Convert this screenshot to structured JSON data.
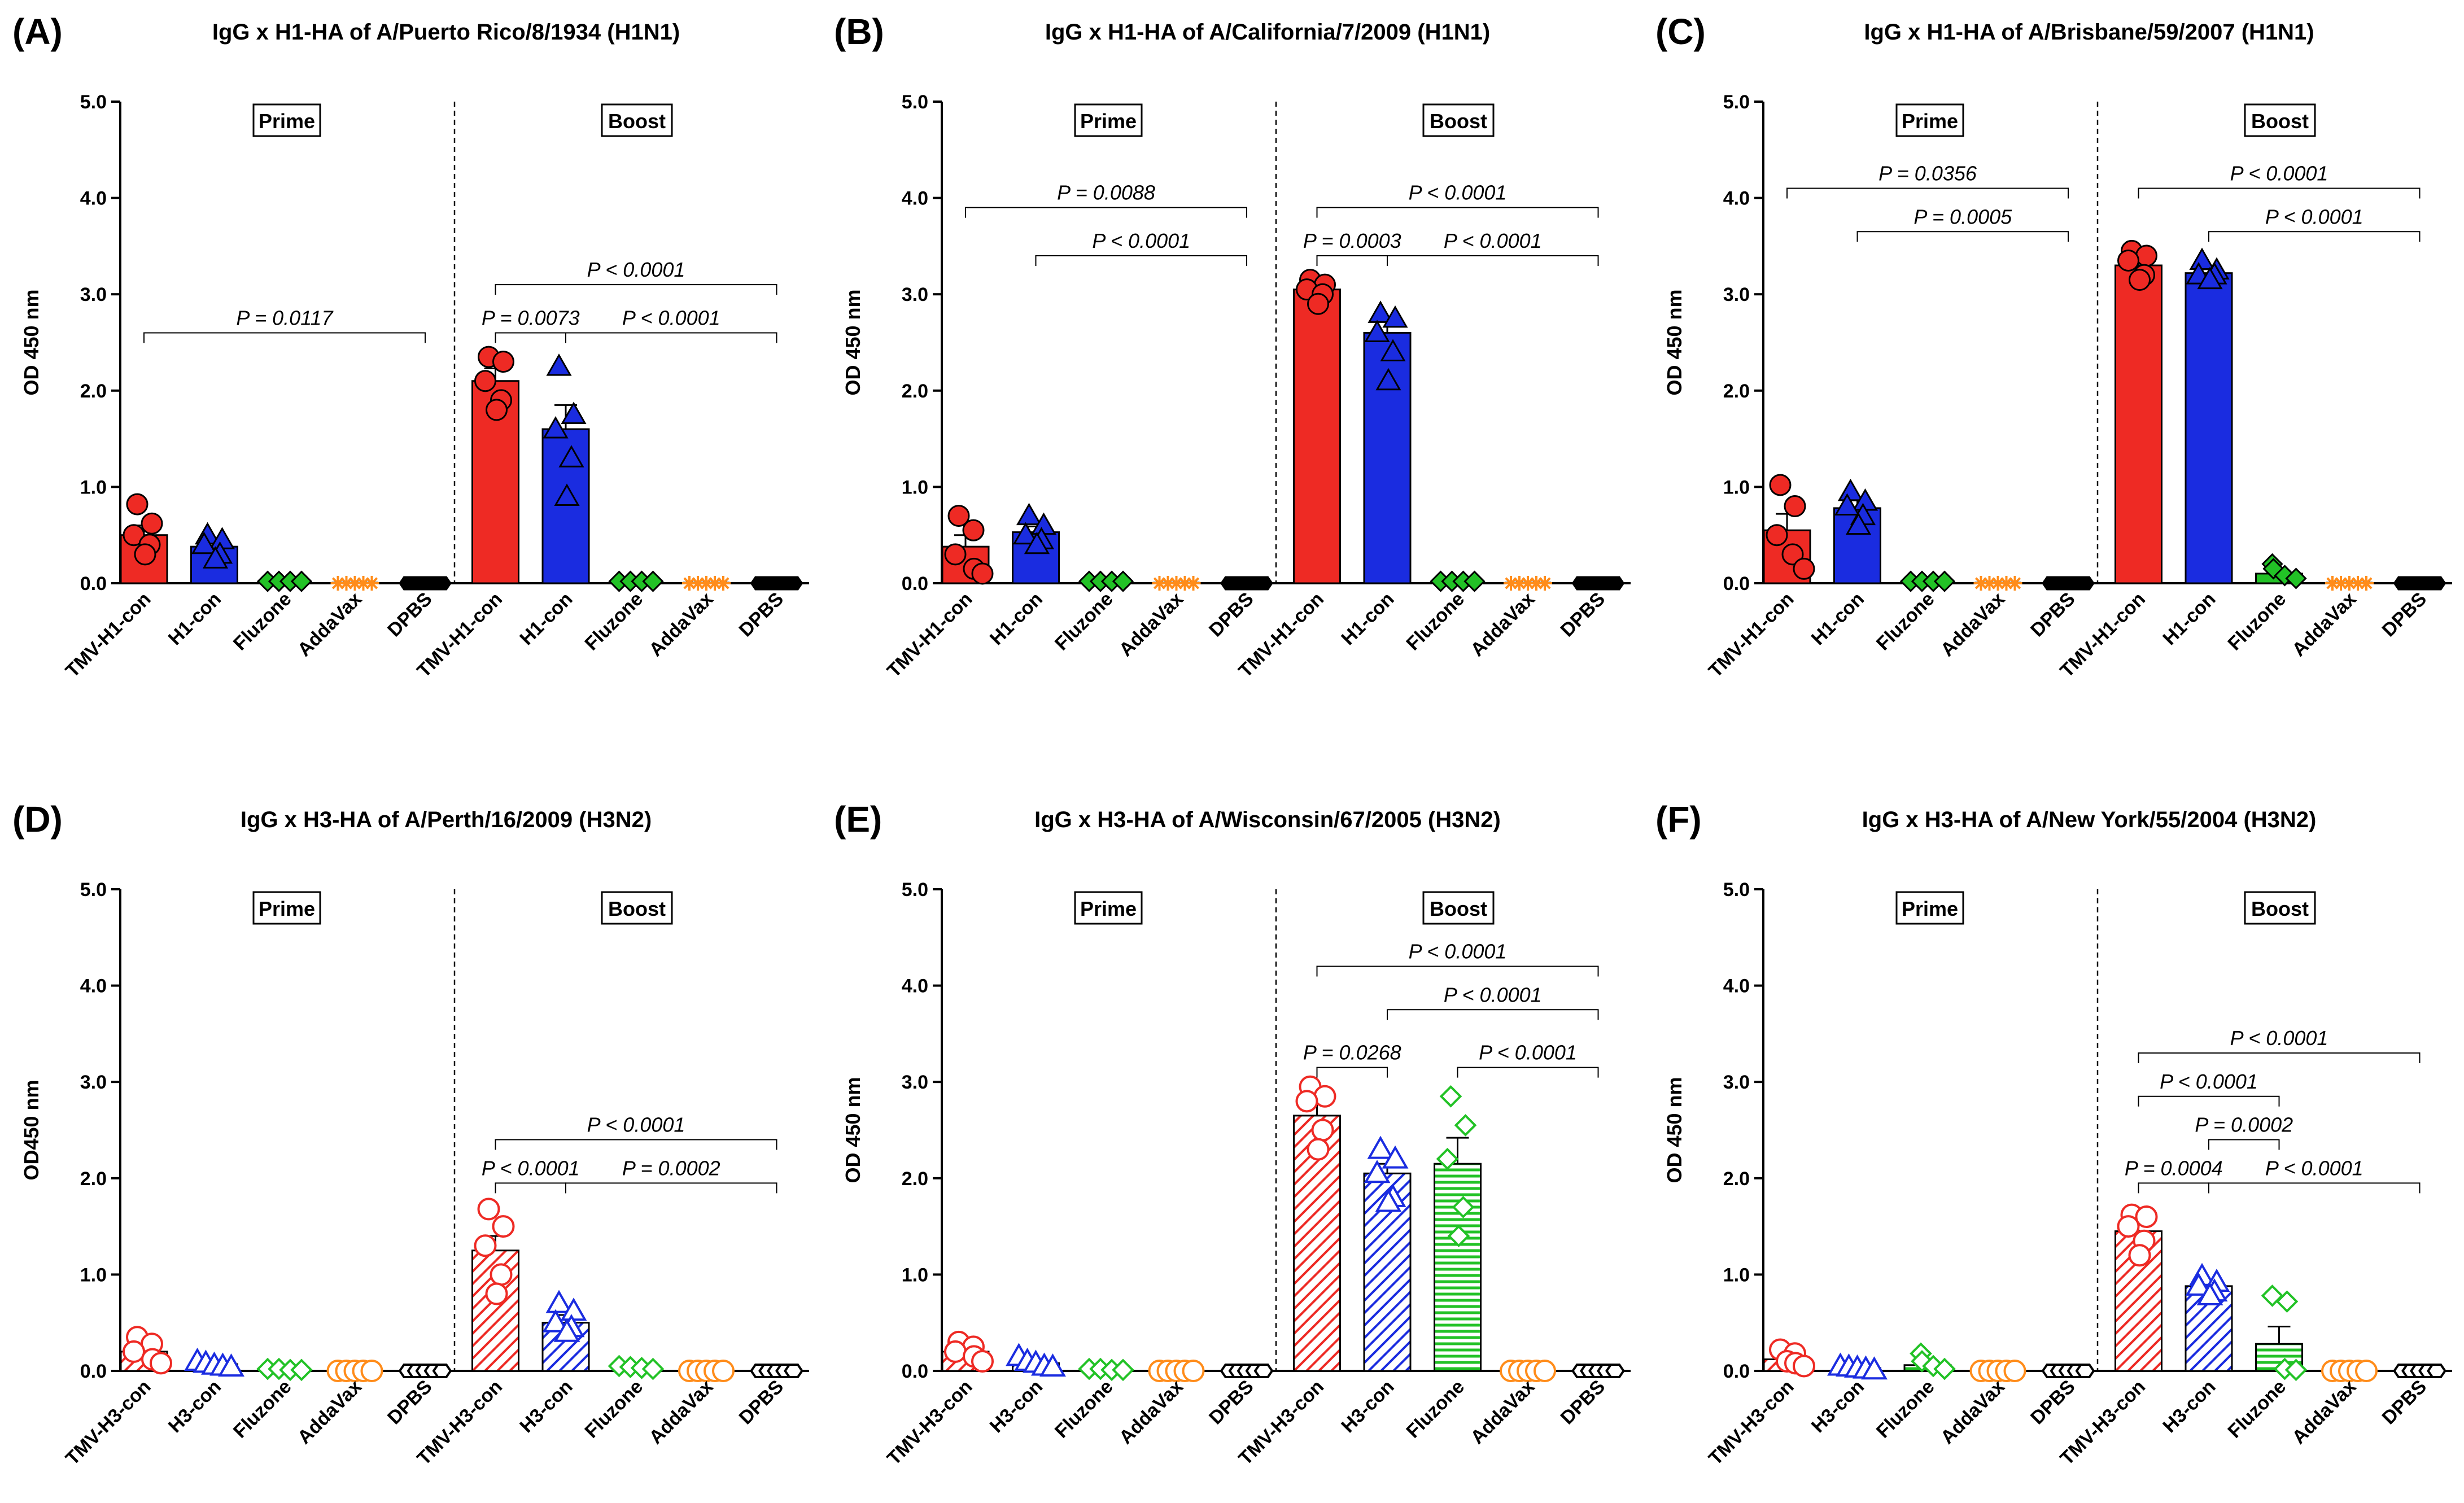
{
  "chart_data": [
    {
      "type": "bar",
      "panel": "(A)",
      "title": "IgG x H1-HA of A/Puerto Rico/8/1934 (H1N1)",
      "ylabel": "OD 450 nm",
      "ylim": [
        0,
        5
      ],
      "yticks": [
        "0.0",
        "1.0",
        "2.0",
        "3.0",
        "4.0",
        "5.0"
      ],
      "fill": "solid",
      "groups": [
        "Prime",
        "Boost"
      ],
      "categories": [
        "TMV-H1-con",
        "H1-con",
        "Fluzone",
        "AddaVax",
        "DPBS",
        "TMV-H1-con",
        "H1-con",
        "Fluzone",
        "AddaVax",
        "DPBS"
      ],
      "values": [
        0.5,
        0.38,
        0.02,
        0.0,
        0.0,
        2.1,
        1.6,
        0.02,
        0.0,
        0.0
      ],
      "sem": [
        0.1,
        0.07,
        0,
        0,
        0,
        0.13,
        0.25,
        0,
        0,
        0
      ],
      "points": [
        [
          0.82,
          0.62,
          0.5,
          0.4,
          0.3
        ],
        [
          0.5,
          0.45,
          0.4,
          0.3,
          0.25
        ],
        [
          0.02,
          0.02,
          0.02,
          0.02
        ],
        [
          0.0,
          0.0,
          0.0,
          0.0,
          0.0
        ],
        [
          0.0,
          0.0,
          0.0,
          0.0,
          0.0
        ],
        [
          2.35,
          2.3,
          2.1,
          1.9,
          1.8
        ],
        [
          2.25,
          1.75,
          1.6,
          1.3,
          0.9
        ],
        [
          0.02,
          0.02,
          0.02,
          0.02
        ],
        [
          0.0,
          0.0,
          0.0,
          0.0,
          0.0
        ],
        [
          0.0,
          0.0,
          0.0,
          0.0,
          0.0
        ]
      ],
      "markers": [
        "circle",
        "triangle",
        "diamond",
        "star",
        "hexagon",
        "circle",
        "triangle",
        "diamond",
        "star",
        "hexagon"
      ],
      "comparisons": [
        {
          "from": 0,
          "to": 4,
          "label": "P = 0.0117",
          "y": 2.6
        },
        {
          "from": 5,
          "to": 9,
          "label": "P < 0.0001",
          "y": 3.1
        },
        {
          "from": 5,
          "to": 6,
          "label": "P = 0.0073",
          "y": 2.6
        },
        {
          "from": 6,
          "to": 9,
          "label": "P < 0.0001",
          "y": 2.6
        }
      ]
    },
    {
      "type": "bar",
      "panel": "(B)",
      "title": "IgG x H1-HA of A/California/7/2009 (H1N1)",
      "ylabel": "OD 450 nm",
      "ylim": [
        0,
        5
      ],
      "yticks": [
        "0.0",
        "1.0",
        "2.0",
        "3.0",
        "4.0",
        "5.0"
      ],
      "fill": "solid",
      "groups": [
        "Prime",
        "Boost"
      ],
      "categories": [
        "TMV-H1-con",
        "H1-con",
        "Fluzone",
        "AddaVax",
        "DPBS",
        "TMV-H1-con",
        "H1-con",
        "Fluzone",
        "AddaVax",
        "DPBS"
      ],
      "values": [
        0.38,
        0.53,
        0.02,
        0.0,
        0.0,
        3.05,
        2.6,
        0.02,
        0.0,
        0.0
      ],
      "sem": [
        0.12,
        0.06,
        0,
        0,
        0,
        0.08,
        0.12,
        0,
        0,
        0
      ],
      "points": [
        [
          0.7,
          0.55,
          0.3,
          0.15,
          0.1
        ],
        [
          0.7,
          0.6,
          0.5,
          0.45,
          0.4
        ],
        [
          0.02,
          0.02,
          0.02,
          0.02
        ],
        [
          0.0,
          0.0,
          0.0,
          0.0,
          0.0
        ],
        [
          0.0,
          0.0,
          0.0,
          0.0,
          0.0
        ],
        [
          3.15,
          3.1,
          3.05,
          3.0,
          2.9
        ],
        [
          2.8,
          2.75,
          2.6,
          2.4,
          2.1
        ],
        [
          0.02,
          0.02,
          0.02,
          0.02
        ],
        [
          0.0,
          0.0,
          0.0,
          0.0,
          0.0
        ],
        [
          0.0,
          0.0,
          0.0,
          0.0,
          0.0
        ]
      ],
      "markers": [
        "circle",
        "triangle",
        "diamond",
        "star",
        "hexagon",
        "circle",
        "triangle",
        "diamond",
        "star",
        "hexagon"
      ],
      "comparisons": [
        {
          "from": 0,
          "to": 4,
          "label": "P = 0.0088",
          "y": 3.9
        },
        {
          "from": 1,
          "to": 4,
          "label": "P < 0.0001",
          "y": 3.4
        },
        {
          "from": 5,
          "to": 9,
          "label": "P < 0.0001",
          "y": 3.9
        },
        {
          "from": 5,
          "to": 6,
          "label": "P = 0.0003",
          "y": 3.4
        },
        {
          "from": 6,
          "to": 9,
          "label": "P < 0.0001",
          "y": 3.4
        }
      ]
    },
    {
      "type": "bar",
      "panel": "(C)",
      "title": "IgG x H1-HA of A/Brisbane/59/2007 (H1N1)",
      "ylabel": "OD 450 nm",
      "ylim": [
        0,
        5
      ],
      "yticks": [
        "0.0",
        "1.0",
        "2.0",
        "3.0",
        "4.0",
        "5.0"
      ],
      "fill": "solid",
      "groups": [
        "Prime",
        "Boost"
      ],
      "categories": [
        "TMV-H1-con",
        "H1-con",
        "Fluzone",
        "AddaVax",
        "DPBS",
        "TMV-H1-con",
        "H1-con",
        "Fluzone",
        "AddaVax",
        "DPBS"
      ],
      "values": [
        0.55,
        0.78,
        0.02,
        0.0,
        0.0,
        3.3,
        3.22,
        0.1,
        0.0,
        0.0
      ],
      "sem": [
        0.17,
        0.08,
        0,
        0,
        0,
        0.06,
        0.04,
        0.03,
        0,
        0
      ],
      "points": [
        [
          1.02,
          0.8,
          0.5,
          0.3,
          0.15
        ],
        [
          0.95,
          0.85,
          0.8,
          0.7,
          0.6
        ],
        [
          0.02,
          0.02,
          0.02,
          0.02
        ],
        [
          0.0,
          0.0,
          0.0,
          0.0,
          0.0
        ],
        [
          0.0,
          0.0,
          0.0,
          0.0,
          0.0
        ],
        [
          3.45,
          3.4,
          3.35,
          3.2,
          3.15
        ],
        [
          3.35,
          3.25,
          3.2,
          3.2,
          3.15
        ],
        [
          0.2,
          0.15,
          0.08,
          0.05
        ],
        [
          0.0,
          0.0,
          0.0,
          0.0,
          0.0
        ],
        [
          0.0,
          0.0,
          0.0,
          0.0,
          0.0
        ]
      ],
      "markers": [
        "circle",
        "triangle",
        "diamond",
        "star",
        "hexagon",
        "circle",
        "triangle",
        "diamond",
        "star",
        "hexagon"
      ],
      "comparisons": [
        {
          "from": 0,
          "to": 4,
          "label": "P = 0.0356",
          "y": 4.1
        },
        {
          "from": 1,
          "to": 4,
          "label": "P = 0.0005",
          "y": 3.65
        },
        {
          "from": 5,
          "to": 9,
          "label": "P < 0.0001",
          "y": 4.1
        },
        {
          "from": 6,
          "to": 9,
          "label": "P < 0.0001",
          "y": 3.65
        }
      ]
    },
    {
      "type": "bar",
      "panel": "(D)",
      "title": "IgG x H3-HA of A/Perth/16/2009 (H3N2)",
      "ylabel": "OD450 nm",
      "ylim": [
        0,
        5
      ],
      "yticks": [
        "0.0",
        "1.0",
        "2.0",
        "3.0",
        "4.0",
        "5.0"
      ],
      "fill": "hatched",
      "groups": [
        "Prime",
        "Boost"
      ],
      "categories": [
        "TMV-H3-con",
        "H3-con",
        "Fluzone",
        "AddaVax",
        "DPBS",
        "TMV-H3-con",
        "H3-con",
        "Fluzone",
        "AddaVax",
        "DPBS"
      ],
      "values": [
        0.2,
        0.07,
        0.01,
        0.0,
        0.0,
        1.25,
        0.5,
        0.02,
        0.0,
        0.0
      ],
      "sem": [
        0.05,
        0.02,
        0,
        0,
        0,
        0.15,
        0.08,
        0,
        0,
        0
      ],
      "points": [
        [
          0.35,
          0.28,
          0.2,
          0.12,
          0.08
        ],
        [
          0.1,
          0.08,
          0.06,
          0.05,
          0.04
        ],
        [
          0.02,
          0.02,
          0.01,
          0.01
        ],
        [
          0.0,
          0.0,
          0.0,
          0.0,
          0.0
        ],
        [
          0.0,
          0.0,
          0.0,
          0.0,
          0.0
        ],
        [
          1.68,
          1.5,
          1.3,
          1.0,
          0.8
        ],
        [
          0.7,
          0.62,
          0.5,
          0.45,
          0.4
        ],
        [
          0.05,
          0.04,
          0.03,
          0.02
        ],
        [
          0.0,
          0.0,
          0.0,
          0.0,
          0.0
        ],
        [
          0.0,
          0.0,
          0.0,
          0.0,
          0.0
        ]
      ],
      "markers": [
        "circle",
        "triangle",
        "diamond",
        "circle",
        "hexagon",
        "circle",
        "triangle",
        "diamond",
        "circle",
        "hexagon"
      ],
      "comparisons": [
        {
          "from": 5,
          "to": 9,
          "label": "P < 0.0001",
          "y": 2.4
        },
        {
          "from": 5,
          "to": 6,
          "label": "P < 0.0001",
          "y": 1.95
        },
        {
          "from": 6,
          "to": 9,
          "label": "P = 0.0002",
          "y": 1.95
        }
      ]
    },
    {
      "type": "bar",
      "panel": "(E)",
      "title": "IgG x H3-HA of A/Wisconsin/67/2005 (H3N2)",
      "ylabel": "OD 450 nm",
      "ylim": [
        0,
        5
      ],
      "yticks": [
        "0.0",
        "1.0",
        "2.0",
        "3.0",
        "4.0",
        "5.0"
      ],
      "fill": "hatched",
      "groups": [
        "Prime",
        "Boost"
      ],
      "categories": [
        "TMV-H3-con",
        "H3-con",
        "Fluzone",
        "AddaVax",
        "DPBS",
        "TMV-H3-con",
        "H3-con",
        "Fluzone",
        "AddaVax",
        "DPBS"
      ],
      "values": [
        0.2,
        0.08,
        0.01,
        0.0,
        0.0,
        2.65,
        2.05,
        2.15,
        0.0,
        0.0
      ],
      "sem": [
        0.05,
        0.02,
        0,
        0,
        0,
        0.15,
        0.1,
        0.27,
        0,
        0
      ],
      "points": [
        [
          0.3,
          0.25,
          0.2,
          0.15,
          0.1
        ],
        [
          0.15,
          0.1,
          0.08,
          0.05,
          0.04
        ],
        [
          0.02,
          0.02,
          0.01,
          0.01
        ],
        [
          0.0,
          0.0,
          0.0,
          0.0,
          0.0
        ],
        [
          0.0,
          0.0,
          0.0,
          0.0,
          0.0
        ],
        [
          2.95,
          2.85,
          2.8,
          2.5,
          2.3
        ],
        [
          2.3,
          2.2,
          2.05,
          1.8,
          1.75
        ],
        [
          2.85,
          2.55,
          2.2,
          1.7,
          1.4
        ],
        [
          0.0,
          0.0,
          0.0,
          0.0,
          0.0
        ],
        [
          0.0,
          0.0,
          0.0,
          0.0,
          0.0
        ]
      ],
      "markers": [
        "circle",
        "triangle",
        "diamond",
        "circle",
        "hexagon",
        "circle",
        "triangle",
        "diamond",
        "circle",
        "hexagon"
      ],
      "comparisons": [
        {
          "from": 5,
          "to": 9,
          "label": "P < 0.0001",
          "y": 4.2
        },
        {
          "from": 6,
          "to": 9,
          "label": "P < 0.0001",
          "y": 3.75
        },
        {
          "from": 5,
          "to": 6,
          "label": "P = 0.0268",
          "y": 3.15
        },
        {
          "from": 7,
          "to": 9,
          "label": "P < 0.0001",
          "y": 3.15
        }
      ]
    },
    {
      "type": "bar",
      "panel": "(F)",
      "title": "IgG x H3-HA of A/New York/55/2004 (H3N2)",
      "ylabel": "OD 450 nm",
      "ylim": [
        0,
        5
      ],
      "yticks": [
        "0.0",
        "1.0",
        "2.0",
        "3.0",
        "4.0",
        "5.0"
      ],
      "fill": "hatched",
      "groups": [
        "Prime",
        "Boost"
      ],
      "categories": [
        "TMV-H3-con",
        "H3-con",
        "Fluzone",
        "AddaVax",
        "DPBS",
        "TMV-H3-con",
        "H3-con",
        "Fluzone",
        "AddaVax",
        "DPBS"
      ],
      "values": [
        0.12,
        0.03,
        0.06,
        0.0,
        0.0,
        1.45,
        0.88,
        0.28,
        0.0,
        0.0
      ],
      "sem": [
        0.04,
        0.01,
        0.03,
        0,
        0,
        0.1,
        0.05,
        0.18,
        0,
        0
      ],
      "points": [
        [
          0.22,
          0.18,
          0.1,
          0.08,
          0.05
        ],
        [
          0.05,
          0.04,
          0.03,
          0.02,
          0.01
        ],
        [
          0.18,
          0.1,
          0.05,
          0.02
        ],
        [
          0.0,
          0.0,
          0.0,
          0.0,
          0.0
        ],
        [
          0.0,
          0.0,
          0.0,
          0.0,
          0.0
        ],
        [
          1.62,
          1.6,
          1.5,
          1.35,
          1.2
        ],
        [
          0.98,
          0.92,
          0.88,
          0.82,
          0.78
        ],
        [
          0.78,
          0.72,
          0.02,
          0.01
        ],
        [
          0.0,
          0.0,
          0.0,
          0.0,
          0.0
        ],
        [
          0.0,
          0.0,
          0.0,
          0.0,
          0.0
        ]
      ],
      "markers": [
        "circle",
        "triangle",
        "diamond",
        "circle",
        "hexagon",
        "circle",
        "triangle",
        "diamond",
        "circle",
        "hexagon"
      ],
      "comparisons": [
        {
          "from": 5,
          "to": 9,
          "label": "P < 0.0001",
          "y": 3.3
        },
        {
          "from": 5,
          "to": 7,
          "label": "P < 0.0001",
          "y": 2.85
        },
        {
          "from": 6,
          "to": 7,
          "label": "P = 0.0002",
          "y": 2.4
        },
        {
          "from": 5,
          "to": 6,
          "label": "P = 0.0004",
          "y": 1.95
        },
        {
          "from": 6,
          "to": 9,
          "label": "P < 0.0001",
          "y": 1.95
        }
      ]
    }
  ],
  "colors": {
    "TMV": "#ee2a24",
    "con": "#1a2ce0",
    "Fluzone": "#22c226",
    "AddaVax": "#ff8c1a",
    "DPBS": "#000000"
  }
}
